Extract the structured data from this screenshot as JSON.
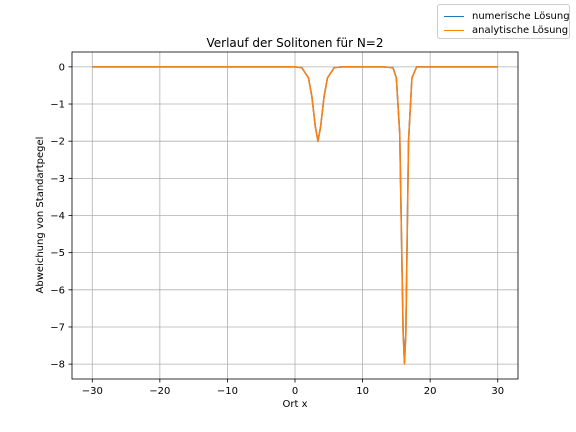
{
  "chart_data": {
    "type": "line",
    "title": "Verlauf der Solitonen für N=2",
    "xlabel": "Ort x",
    "ylabel": "Abweichung von Standartpegel",
    "xlim": [
      -33,
      33
    ],
    "ylim": [
      -8.4,
      0.4
    ],
    "xticks": [
      -30,
      -20,
      -10,
      0,
      10,
      20,
      30
    ],
    "xtick_labels": [
      "−30",
      "−20",
      "−10",
      "0",
      "10",
      "20",
      "30"
    ],
    "yticks": [
      0,
      -1,
      -2,
      -3,
      -4,
      -5,
      -6,
      -7,
      -8
    ],
    "ytick_labels": [
      "0",
      "−1",
      "−2",
      "−3",
      "−4",
      "−5",
      "−6",
      "−7",
      "−8"
    ],
    "grid": true,
    "legend_position": "upper-right (outside plot)",
    "solitons": [
      {
        "center": 3.4,
        "amplitude": -2.0
      },
      {
        "center": 16.2,
        "amplitude": -8.0
      }
    ],
    "x_range": [
      -30,
      30
    ],
    "series": [
      {
        "name": "numerische Lösung",
        "color": "#1f77b4",
        "points": [
          [
            -30,
            0
          ],
          [
            -5,
            0
          ],
          [
            0,
            0
          ],
          [
            1,
            -0.02
          ],
          [
            2,
            -0.3
          ],
          [
            2.5,
            -0.8
          ],
          [
            3,
            -1.6
          ],
          [
            3.4,
            -2.0
          ],
          [
            3.8,
            -1.6
          ],
          [
            4.3,
            -0.8
          ],
          [
            4.8,
            -0.3
          ],
          [
            5.8,
            -0.02
          ],
          [
            7,
            0
          ],
          [
            13,
            0
          ],
          [
            14.5,
            -0.02
          ],
          [
            15,
            -0.3
          ],
          [
            15.5,
            -1.8
          ],
          [
            16,
            -7.1
          ],
          [
            16.2,
            -7.95
          ],
          [
            16.4,
            -7.2
          ],
          [
            16.8,
            -2.0
          ],
          [
            17.3,
            -0.3
          ],
          [
            18,
            0
          ],
          [
            30,
            0
          ]
        ]
      },
      {
        "name": "analytische Lösung",
        "color": "#ff7f0e",
        "points": [
          [
            -30,
            0
          ],
          [
            -5,
            0
          ],
          [
            0,
            0
          ],
          [
            1,
            -0.02
          ],
          [
            2,
            -0.3
          ],
          [
            2.5,
            -0.8
          ],
          [
            3,
            -1.6
          ],
          [
            3.4,
            -2.0
          ],
          [
            3.8,
            -1.6
          ],
          [
            4.3,
            -0.8
          ],
          [
            4.8,
            -0.3
          ],
          [
            5.8,
            -0.02
          ],
          [
            7,
            0
          ],
          [
            13,
            0
          ],
          [
            14.5,
            -0.02
          ],
          [
            15,
            -0.3
          ],
          [
            15.5,
            -1.8
          ],
          [
            16,
            -7.2
          ],
          [
            16.2,
            -8.0
          ],
          [
            16.4,
            -7.2
          ],
          [
            16.8,
            -2.0
          ],
          [
            17.3,
            -0.3
          ],
          [
            18,
            0
          ],
          [
            30,
            0
          ]
        ]
      }
    ]
  }
}
